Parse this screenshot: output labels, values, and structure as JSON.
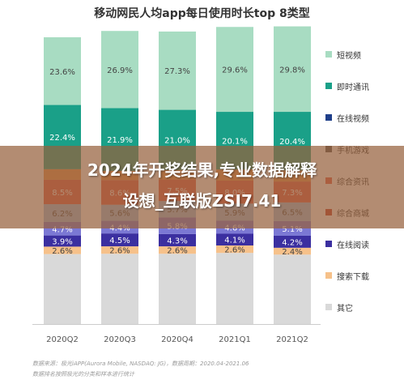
{
  "chart_data": {
    "type": "bar",
    "stacked": true,
    "title": "移动网民人均app每日使用时长top 8类型",
    "xlabel": "",
    "ylabel": "",
    "ylim": [
      0,
      100
    ],
    "categories": [
      "2020Q2",
      "2020Q3",
      "2020Q4",
      "2021Q1",
      "2021Q2"
    ],
    "series": [
      {
        "name": "其它",
        "color": "#d9d9d9",
        "values": [
          24.4,
          24.5,
          24.5,
          24.8,
          24.2
        ],
        "labels": [
          "",
          "",
          "",
          "",
          ""
        ]
      },
      {
        "name": "搜索下载",
        "color": "#f6c18a",
        "values": [
          2.6,
          2.6,
          2.6,
          2.6,
          2.4
        ],
        "labels": [
          "2.6%",
          "2.6%",
          "2.6%",
          "2.6%",
          "2.4%"
        ]
      },
      {
        "name": "在线阅读",
        "color": "#3b2fa0",
        "values": [
          3.9,
          4.5,
          4.3,
          4.1,
          4.2
        ],
        "labels": [
          "3.9%",
          "4.5%",
          "4.3%",
          "4.1%",
          "4.2%"
        ]
      },
      {
        "name": "综合资讯",
        "color": "#7b78d4",
        "values": [
          4.7,
          4.4,
          5.8,
          4.6,
          5.1
        ],
        "labels": [
          "4.7%",
          "4.4%",
          "5.8%",
          "4.6%",
          "5.1%"
        ]
      },
      {
        "name": "综合商城",
        "color": "#9dc3e6",
        "values": [
          6.2,
          5.6,
          5.7,
          5.9,
          6.5
        ],
        "labels": [
          "6.2%",
          "5.6%",
          "5.7%",
          "5.9%",
          "6.5%"
        ]
      },
      {
        "name": "在线视频",
        "color": "#e05a4a",
        "values": [
          8.5,
          8.6,
          7.5,
          8.0,
          7.3
        ],
        "labels": [
          "8.5%",
          "8.6%",
          "7.5%",
          "8.0%",
          "7.3%"
        ]
      },
      {
        "name": "手机游戏",
        "color": "#e8954f",
        "values": [
          3.7,
          3.2,
          3.3,
          3.9,
          3.9
        ],
        "labels": [
          "",
          "",
          "",
          "",
          ""
        ]
      },
      {
        "name": "即时通讯",
        "color": "#1aa088",
        "values": [
          22.4,
          21.9,
          21.0,
          20.1,
          20.4
        ],
        "labels": [
          "22.4%",
          "21.9%",
          "21.0%",
          "20.1%",
          "20.4%"
        ]
      },
      {
        "name": "短视频",
        "color": "#a8dcc2",
        "values": [
          23.6,
          26.9,
          27.3,
          29.6,
          29.8
        ],
        "labels": [
          "23.6%",
          "26.9%",
          "27.3%",
          "29.6%",
          "29.8%"
        ]
      }
    ],
    "legend": {
      "position": "right",
      "items": [
        {
          "label": "短视频",
          "color": "#a8dcc2"
        },
        {
          "label": "即时通讯",
          "color": "#1aa088"
        },
        {
          "label": "在线视频",
          "color": "#1f3f8a"
        },
        {
          "label": "手机游戏",
          "color": "#555555"
        },
        {
          "label": "综合资讯",
          "color": "#e05a4a"
        },
        {
          "label": "综合商城",
          "color": "#c0392b"
        },
        {
          "label": "在线阅读",
          "color": "#3b2fa0"
        },
        {
          "label": "搜索下载",
          "color": "#f6c18a"
        },
        {
          "label": "其它",
          "color": "#d9d9d9"
        }
      ]
    }
  },
  "overlay": {
    "line1": "2024年开奖结果,专业数据解释",
    "line2": "设想_互联版ZSI7.41"
  },
  "source": {
    "line1": "数据来源：极光iAPP(Aurora Mobile, NASDAQ: JG)，数据周期：2020.04-2021.06",
    "line2": "数据排名按照极光的分类和样本进行统计"
  }
}
